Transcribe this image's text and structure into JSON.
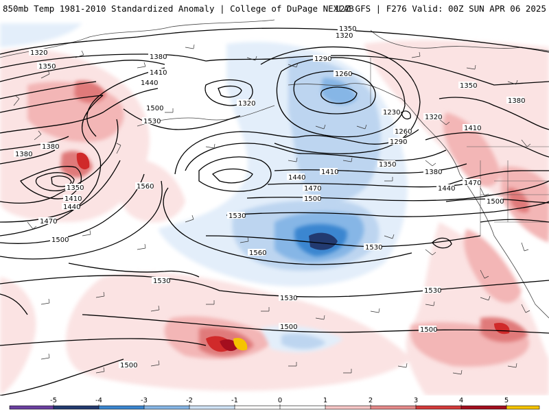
{
  "header": {
    "title_left": "850mb Temp 1981-2010 Standardized Anomaly | College of DuPage NEXLAB",
    "title_right": "12Z GFS | F276 Valid: 00Z SUN APR 06 2025"
  },
  "legend": {
    "tick_labels": [
      "-5",
      "-4",
      "-3",
      "-2",
      "-1",
      "0",
      "1",
      "2",
      "3",
      "4",
      "5"
    ],
    "colors": [
      "#6a3fa0",
      "#223a70",
      "#3a86d0",
      "#86b6e6",
      "#cfe2f5",
      "#ffffff",
      "#ffffff",
      "#f6c6c6",
      "#e68a8a",
      "#d43a3a",
      "#a40e1e",
      "#f5c400"
    ]
  },
  "map": {
    "shading": {
      "anomaly_negative_colors": [
        "#e3eefa",
        "#bdd5f0",
        "#86b6e6",
        "#3a86d0",
        "#223a70"
      ],
      "anomaly_positive_colors": [
        "#fbe3e3",
        "#f3b6b6",
        "#e07a7a",
        "#d02a2a",
        "#a40e1e",
        "#f5c400"
      ]
    },
    "contour_labels": [
      "1350",
      "1320",
      "1320",
      "1350",
      "1380",
      "1410",
      "1440",
      "1500",
      "1530",
      "1290",
      "1260",
      "1320",
      "1230",
      "1260",
      "1290",
      "1320",
      "1350",
      "1380",
      "1410",
      "1440",
      "1470",
      "1500",
      "1530",
      "1560",
      "1380",
      "1380",
      "1350",
      "1410",
      "1440",
      "1470",
      "1500",
      "1560",
      "1530",
      "1530",
      "1530",
      "1350",
      "1380",
      "1410",
      "1440",
      "1470",
      "1500",
      "1500",
      "1500",
      "1530",
      "1500"
    ]
  }
}
